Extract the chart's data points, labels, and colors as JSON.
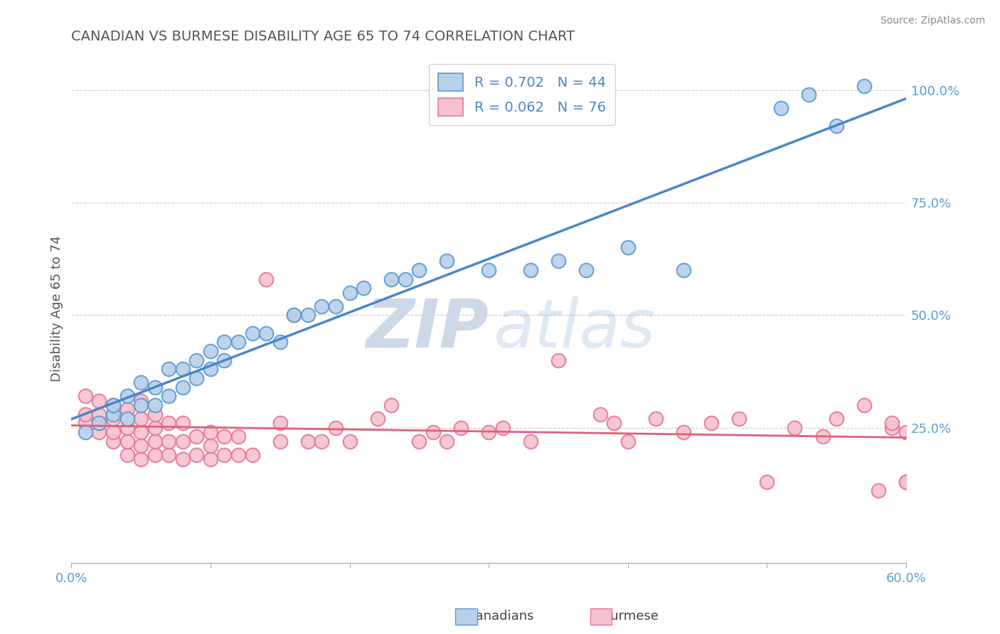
{
  "title": "CANADIAN VS BURMESE DISABILITY AGE 65 TO 74 CORRELATION CHART",
  "source_text": "Source: ZipAtlas.com",
  "ylabel": "Disability Age 65 to 74",
  "xlim": [
    0.0,
    0.6
  ],
  "ylim": [
    -0.05,
    1.08
  ],
  "canadian_R": 0.702,
  "canadian_N": 44,
  "burmese_R": 0.062,
  "burmese_N": 76,
  "blue_fill": "#b8d0e8",
  "blue_edge": "#5b9bd5",
  "pink_fill": "#f4c2ce",
  "pink_edge": "#e8769a",
  "blue_line": "#4a86c8",
  "pink_line": "#e0607a",
  "legend_text_color": "#4a86c8",
  "title_color": "#555555",
  "watermark_color": "#cdd8e8",
  "axis_label_color": "#5b9bd5",
  "background_color": "#ffffff",
  "grid_color": "#cccccc",
  "canadian_x": [
    0.01,
    0.02,
    0.03,
    0.03,
    0.04,
    0.04,
    0.05,
    0.05,
    0.06,
    0.06,
    0.07,
    0.07,
    0.08,
    0.08,
    0.09,
    0.09,
    0.1,
    0.1,
    0.11,
    0.11,
    0.12,
    0.13,
    0.14,
    0.15,
    0.16,
    0.17,
    0.18,
    0.19,
    0.2,
    0.21,
    0.23,
    0.24,
    0.25,
    0.27,
    0.3,
    0.33,
    0.35,
    0.37,
    0.4,
    0.44,
    0.51,
    0.53,
    0.55,
    0.57
  ],
  "canadian_y": [
    0.24,
    0.26,
    0.28,
    0.3,
    0.27,
    0.32,
    0.3,
    0.35,
    0.3,
    0.34,
    0.32,
    0.38,
    0.34,
    0.38,
    0.36,
    0.4,
    0.38,
    0.42,
    0.4,
    0.44,
    0.44,
    0.46,
    0.46,
    0.44,
    0.5,
    0.5,
    0.52,
    0.52,
    0.55,
    0.56,
    0.58,
    0.58,
    0.6,
    0.62,
    0.6,
    0.6,
    0.62,
    0.6,
    0.65,
    0.6,
    0.96,
    0.99,
    0.92,
    1.01
  ],
  "burmese_x": [
    0.01,
    0.01,
    0.01,
    0.02,
    0.02,
    0.02,
    0.02,
    0.03,
    0.03,
    0.03,
    0.03,
    0.04,
    0.04,
    0.04,
    0.04,
    0.05,
    0.05,
    0.05,
    0.05,
    0.05,
    0.06,
    0.06,
    0.06,
    0.06,
    0.07,
    0.07,
    0.07,
    0.08,
    0.08,
    0.08,
    0.09,
    0.09,
    0.1,
    0.1,
    0.1,
    0.11,
    0.11,
    0.12,
    0.12,
    0.13,
    0.14,
    0.15,
    0.15,
    0.16,
    0.17,
    0.18,
    0.19,
    0.2,
    0.22,
    0.23,
    0.25,
    0.26,
    0.27,
    0.28,
    0.3,
    0.31,
    0.33,
    0.35,
    0.38,
    0.39,
    0.4,
    0.42,
    0.44,
    0.46,
    0.48,
    0.5,
    0.52,
    0.54,
    0.55,
    0.57,
    0.58,
    0.59,
    0.59,
    0.6,
    0.6,
    0.6
  ],
  "burmese_y": [
    0.26,
    0.28,
    0.32,
    0.24,
    0.26,
    0.28,
    0.31,
    0.22,
    0.24,
    0.27,
    0.3,
    0.19,
    0.22,
    0.25,
    0.29,
    0.18,
    0.21,
    0.24,
    0.27,
    0.31,
    0.19,
    0.22,
    0.25,
    0.28,
    0.19,
    0.22,
    0.26,
    0.18,
    0.22,
    0.26,
    0.19,
    0.23,
    0.18,
    0.21,
    0.24,
    0.19,
    0.23,
    0.19,
    0.23,
    0.19,
    0.58,
    0.22,
    0.26,
    0.5,
    0.22,
    0.22,
    0.25,
    0.22,
    0.27,
    0.3,
    0.22,
    0.24,
    0.22,
    0.25,
    0.24,
    0.25,
    0.22,
    0.4,
    0.28,
    0.26,
    0.22,
    0.27,
    0.24,
    0.26,
    0.27,
    0.13,
    0.25,
    0.23,
    0.27,
    0.3,
    0.11,
    0.25,
    0.26,
    0.13,
    0.24,
    0.13
  ]
}
